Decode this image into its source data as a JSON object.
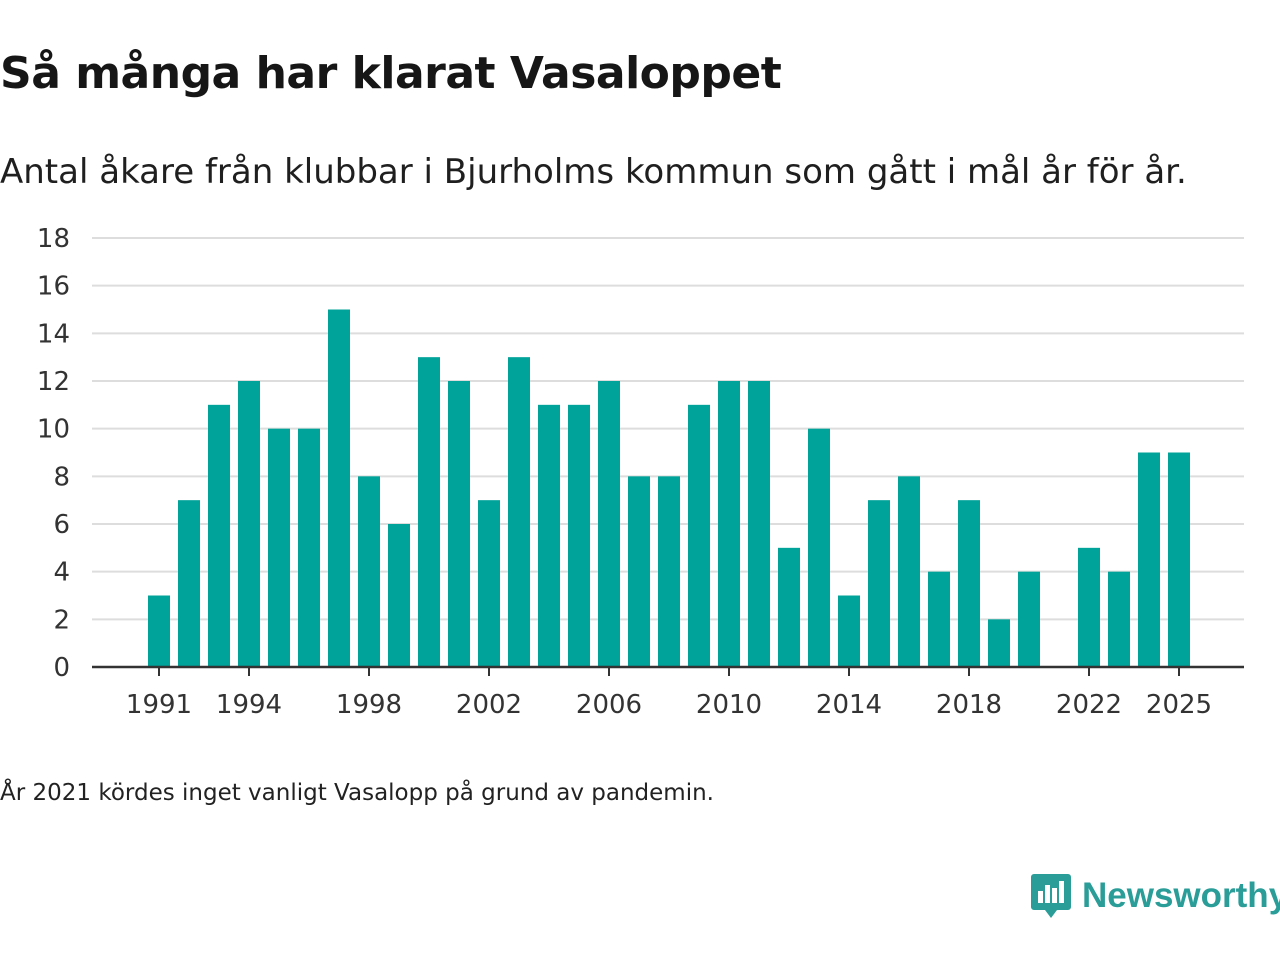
{
  "title": "Så många har klarat Vasaloppet",
  "subtitle": "Antal åkare från klubbar i Bjurholms kommun som gått i mål år för år.",
  "footnote": "År 2021 kördes inget vanligt Vasalopp på grund av pandemin.",
  "brand": {
    "name": "Newsworthy",
    "color": "#2a9d98"
  },
  "chart_data": {
    "type": "bar",
    "title": "Så många har klarat Vasaloppet",
    "xlabel": "",
    "ylabel": "",
    "ylim": [
      0,
      18
    ],
    "yticks": [
      0,
      2,
      4,
      6,
      8,
      10,
      12,
      14,
      16,
      18
    ],
    "xtick_labels": [
      "1991",
      "1994",
      "1998",
      "2002",
      "2006",
      "2010",
      "2014",
      "2018",
      "2022",
      "2025"
    ],
    "grid": true,
    "bar_color": "#00a39a",
    "categories": [
      "1990",
      "1991",
      "1992",
      "1993",
      "1994",
      "1995",
      "1996",
      "1997",
      "1998",
      "1999",
      "2000",
      "2001",
      "2002",
      "2003",
      "2004",
      "2005",
      "2006",
      "2007",
      "2008",
      "2009",
      "2010",
      "2011",
      "2012",
      "2013",
      "2014",
      "2015",
      "2016",
      "2017",
      "2018",
      "2019",
      "2020",
      "2021",
      "2022",
      "2023",
      "2024",
      "2025"
    ],
    "values": [
      null,
      3,
      7,
      11,
      12,
      10,
      10,
      15,
      8,
      6,
      13,
      12,
      7,
      13,
      11,
      11,
      12,
      8,
      8,
      11,
      12,
      12,
      5,
      10,
      3,
      7,
      8,
      4,
      7,
      2,
      4,
      null,
      5,
      4,
      9,
      9
    ]
  }
}
